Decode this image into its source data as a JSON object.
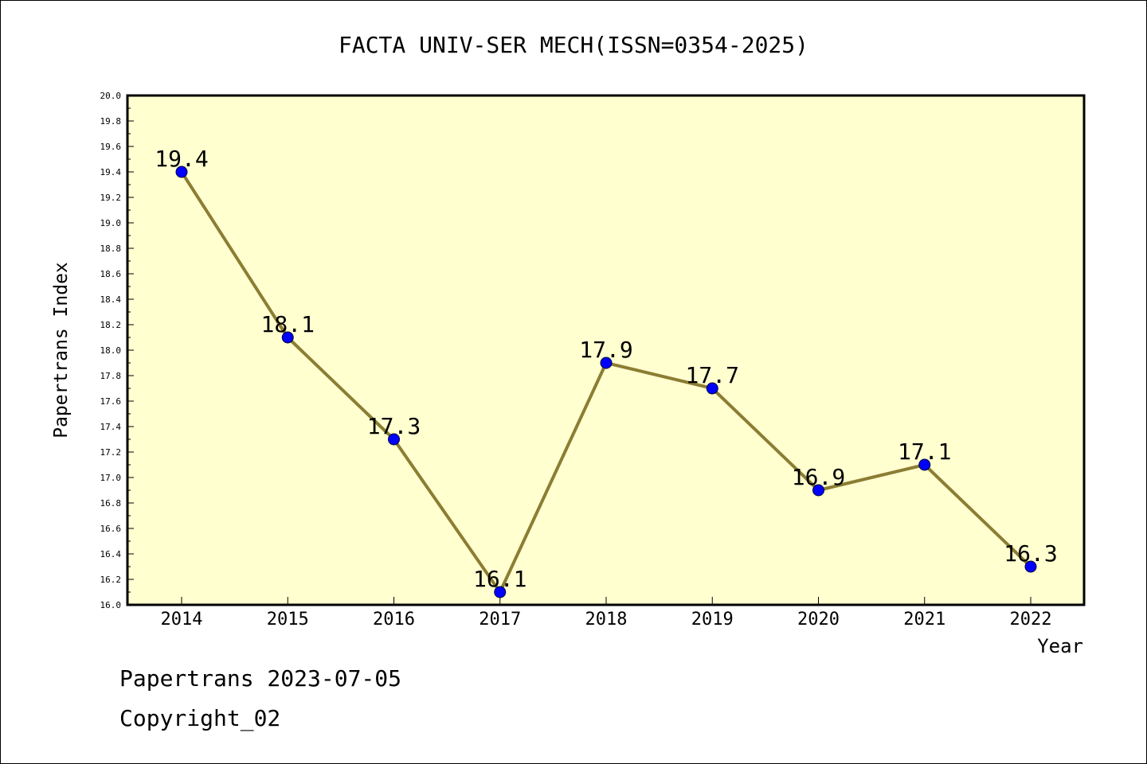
{
  "chart_data": {
    "type": "line",
    "title": "FACTA UNIV-SER MECH(ISSN=0354-2025)",
    "xlabel": "Year",
    "ylabel": "Papertrans Index",
    "categories": [
      "2014",
      "2015",
      "2016",
      "2017",
      "2018",
      "2019",
      "2020",
      "2021",
      "2022"
    ],
    "values": [
      19.4,
      18.1,
      17.3,
      16.1,
      17.9,
      17.7,
      16.9,
      17.1,
      16.3
    ],
    "data_labels": [
      "19.4",
      "18.1",
      "17.3",
      "16.1",
      "17.9",
      "17.7",
      "16.9",
      "17.1",
      "16.3"
    ],
    "ylim": [
      16.0,
      20.0
    ],
    "ytick_labels": [
      "16.0",
      "16.2",
      "16.4",
      "16.6",
      "16.8",
      "17.0",
      "17.2",
      "17.4",
      "17.6",
      "17.8",
      "18.0",
      "18.2",
      "18.4",
      "18.6",
      "18.8",
      "19.0",
      "19.2",
      "19.4",
      "19.6",
      "19.8",
      "20.0"
    ],
    "grid": false,
    "colors": {
      "plot_background": "#ffffd0",
      "line": "#8b7d32",
      "marker": "#0000ff",
      "axes": "#000000"
    }
  },
  "footer": {
    "source": "Papertrans 2023-07-05",
    "copyright": "Copyright_02"
  }
}
